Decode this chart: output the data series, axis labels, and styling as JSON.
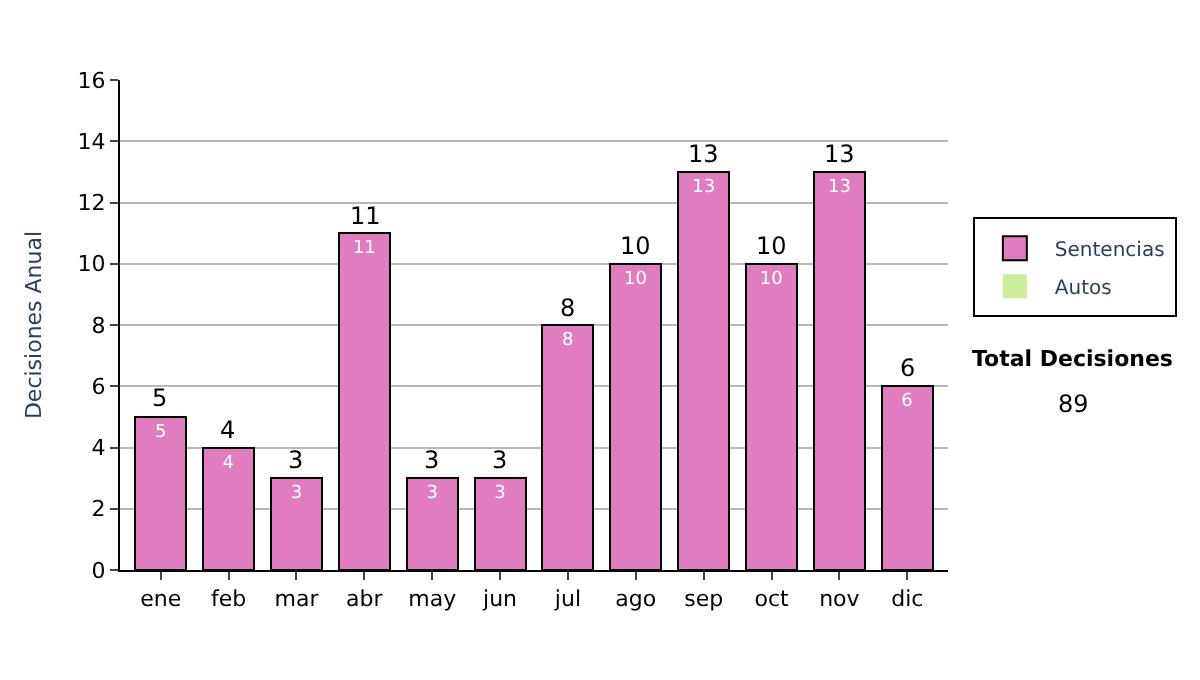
{
  "chart_data": {
    "type": "bar",
    "stacked": true,
    "ylabel": "Decisiones Anual",
    "categories": [
      "ene",
      "feb",
      "mar",
      "abr",
      "may",
      "jun",
      "jul",
      "ago",
      "sep",
      "oct",
      "nov",
      "dic"
    ],
    "series": [
      {
        "name": "Sentencias",
        "color": "#e07cc0",
        "values": [
          5,
          4,
          3,
          11,
          3,
          3,
          8,
          10,
          13,
          10,
          13,
          6
        ],
        "value_labels": [
          "5",
          "4",
          "3",
          "11",
          "3",
          "3",
          "8",
          "10",
          "13",
          "10",
          "13",
          "6"
        ]
      },
      {
        "name": "Autos",
        "color": "#ccee99",
        "values": [
          0,
          0,
          0,
          0,
          0,
          0,
          0,
          0,
          0,
          0,
          0,
          0
        ]
      }
    ],
    "totals": [
      "5",
      "4",
      "3",
      "11",
      "3",
      "3",
      "8",
      "10",
      "13",
      "10",
      "13",
      "6"
    ],
    "ylim": [
      0,
      16
    ],
    "yticks": [
      0,
      2,
      4,
      6,
      8,
      10,
      12,
      14,
      16
    ],
    "grid": "y",
    "legend": "right",
    "annotations": [
      "Total Decisiones",
      "89"
    ]
  }
}
